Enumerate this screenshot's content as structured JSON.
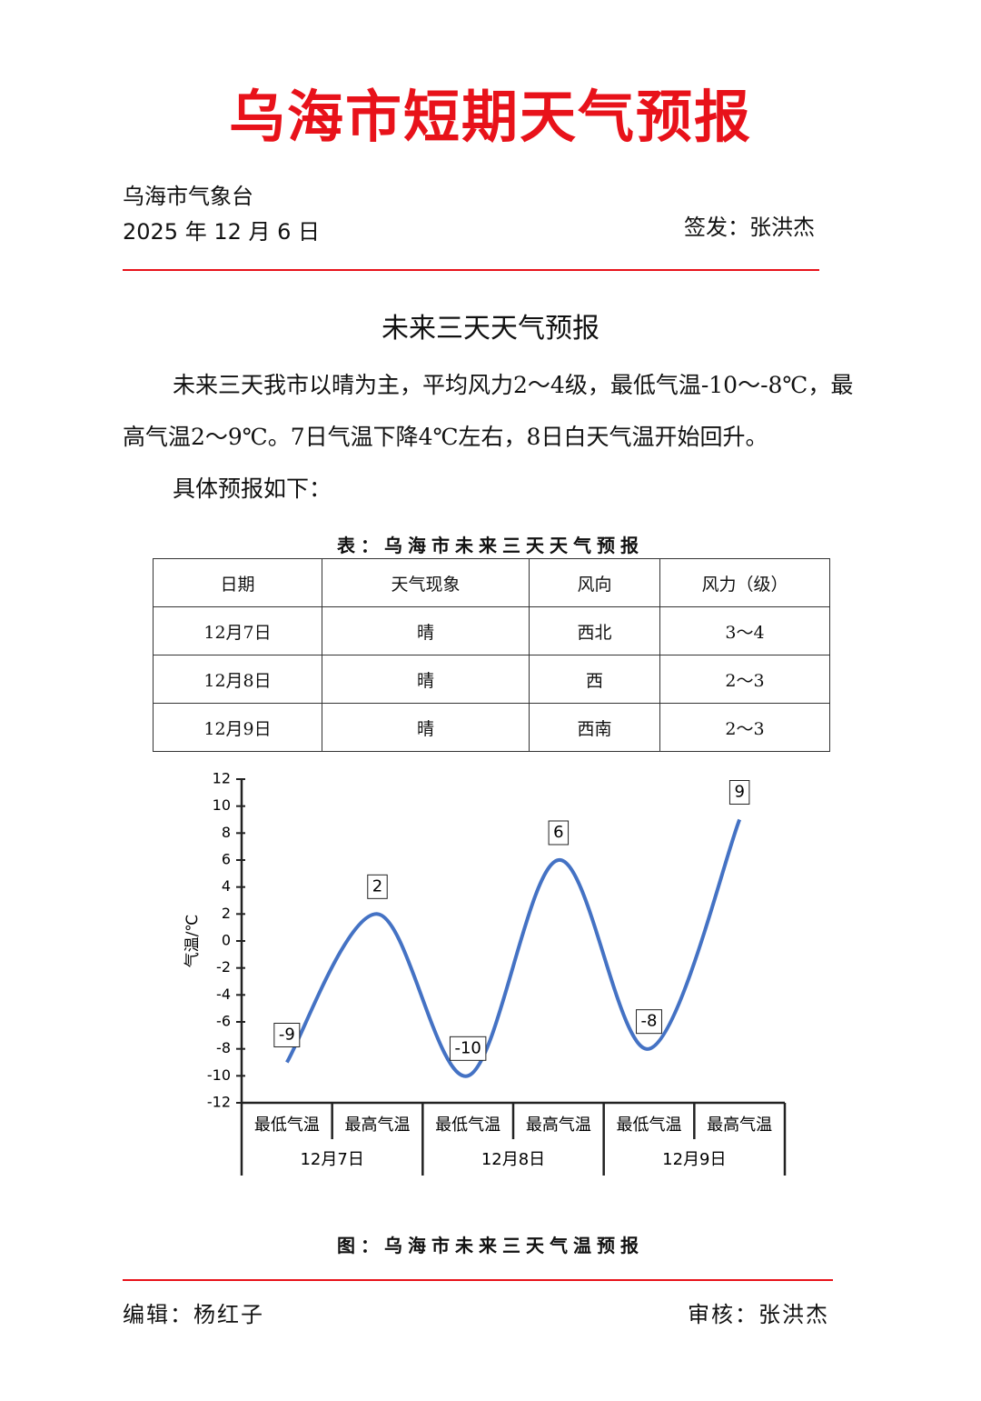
{
  "header": {
    "title": "乌海市短期天气预报",
    "issuer": "乌海市气象台",
    "date": "2025 年 12 月 6 日",
    "signer": "签发：张洪杰"
  },
  "section": {
    "title": "未来三天天气预报",
    "paragraphs": [
      "未来三天我市以晴为主，平均风力2～4级，最低气温-10～-8℃，最高气温2～9℃。7日气温下降4℃左右，8日白天气温开始回升。",
      "具体预报如下："
    ]
  },
  "table": {
    "caption": "表：乌海市未来三天天气预报",
    "header": [
      "日期",
      "天气现象",
      "风向",
      "风力（级）"
    ],
    "rows": [
      [
        "12月7日",
        "晴",
        "西北",
        "3～4"
      ],
      [
        "12月8日",
        "晴",
        "西",
        "2～3"
      ],
      [
        "12月9日",
        "晴",
        "西南",
        "2～3"
      ]
    ]
  },
  "chart_data": {
    "type": "line",
    "y_label": "气温/℃",
    "categories": [
      "最低气温",
      "最高气温",
      "最低气温",
      "最高气温",
      "最低气温",
      "最高气温"
    ],
    "groups": [
      "12月7日",
      "12月8日",
      "12月9日"
    ],
    "values": [
      -9,
      2,
      -10,
      6,
      -8,
      9
    ],
    "color": "#4472c4",
    "smooth": true,
    "ylim": [
      -12,
      12
    ],
    "yticks": [
      -12,
      -10,
      -8,
      -6,
      -4,
      -2,
      0,
      2,
      4,
      6,
      8,
      10,
      12
    ]
  },
  "figure_caption": "图：乌海市未来三天气温预报",
  "footer": {
    "editor": "编辑：杨红子",
    "reviewer": "审核：张洪杰"
  }
}
